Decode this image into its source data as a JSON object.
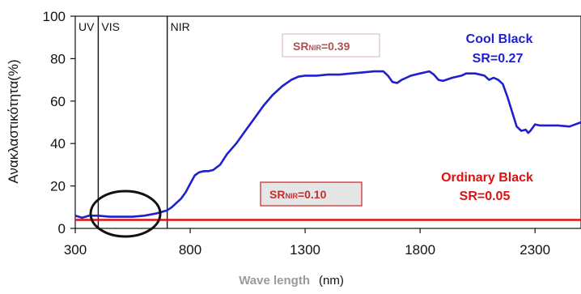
{
  "chart_data": {
    "type": "line",
    "title": "",
    "ylabel": "Ανακλαστικότητα(%)",
    "xlabel": "Wave length",
    "xlabel_unit": "(nm)",
    "xlim": [
      300,
      2500
    ],
    "ylim": [
      0,
      100
    ],
    "xticks": [
      300,
      800,
      1300,
      1800,
      2300
    ],
    "yticks": [
      0,
      20,
      40,
      60,
      80,
      100
    ],
    "grid": false,
    "regions": [
      {
        "label": "UV",
        "from": 300,
        "to": 400
      },
      {
        "label": "VIS",
        "from": 400,
        "to": 700
      },
      {
        "label": "NIR",
        "from": 700,
        "to": 2500
      }
    ],
    "series": [
      {
        "name": "Cool Black",
        "color": "#1f1fd0",
        "x": [
          300,
          330,
          360,
          400,
          450,
          500,
          550,
          600,
          650,
          700,
          720,
          740,
          760,
          780,
          800,
          820,
          840,
          860,
          880,
          900,
          930,
          960,
          1000,
          1040,
          1080,
          1120,
          1160,
          1200,
          1240,
          1270,
          1300,
          1350,
          1400,
          1450,
          1500,
          1550,
          1600,
          1640,
          1660,
          1680,
          1700,
          1720,
          1740,
          1760,
          1800,
          1840,
          1860,
          1880,
          1900,
          1940,
          1980,
          2000,
          2040,
          2080,
          2100,
          2120,
          2140,
          2160,
          2180,
          2200,
          2220,
          2240,
          2260,
          2270,
          2280,
          2300,
          2320,
          2350,
          2400,
          2450,
          2500
        ],
        "y": [
          6,
          5,
          6,
          6,
          5.5,
          5.5,
          5.5,
          6,
          7,
          8.5,
          10,
          12,
          14,
          17,
          21,
          25,
          26.5,
          27,
          27,
          27.5,
          30,
          35,
          40,
          46,
          52,
          58,
          63,
          67,
          70,
          71.5,
          72,
          72,
          72.5,
          72.5,
          73,
          73.5,
          74,
          74,
          72,
          69,
          68.5,
          70,
          71,
          72,
          73,
          74,
          72.5,
          70,
          69.5,
          71,
          72,
          73,
          73,
          72,
          70,
          71,
          70,
          68,
          62,
          55,
          48,
          46,
          46.5,
          45,
          46,
          49,
          48.5,
          48.5,
          48.5,
          48,
          50
        ]
      },
      {
        "name": "Ordinary Black",
        "color": "#e01010",
        "x": [
          300,
          400,
          500,
          600,
          700,
          800,
          1000,
          1200,
          1400,
          1600,
          1800,
          2000,
          2200,
          2400,
          2500
        ],
        "y": [
          4,
          4,
          4,
          4,
          4,
          4,
          4,
          4,
          4,
          4,
          4,
          4,
          4,
          4,
          4
        ]
      }
    ],
    "annotations": {
      "cool_black": {
        "title": "Cool Black",
        "sr": "SR=0.27"
      },
      "ordinary_black": {
        "title": "Ordinary Black",
        "sr": "SR=0.05"
      },
      "sr_nir_cool": {
        "prefix": "SR",
        "sub": "NIR",
        "value": "=0.39"
      },
      "sr_nir_ordinary": {
        "prefix": "SR",
        "sub": "NIR",
        "value": "=0.10"
      }
    },
    "colors": {
      "blue": "#1f1fd0",
      "red": "#e01010",
      "axis": "#111111"
    }
  }
}
